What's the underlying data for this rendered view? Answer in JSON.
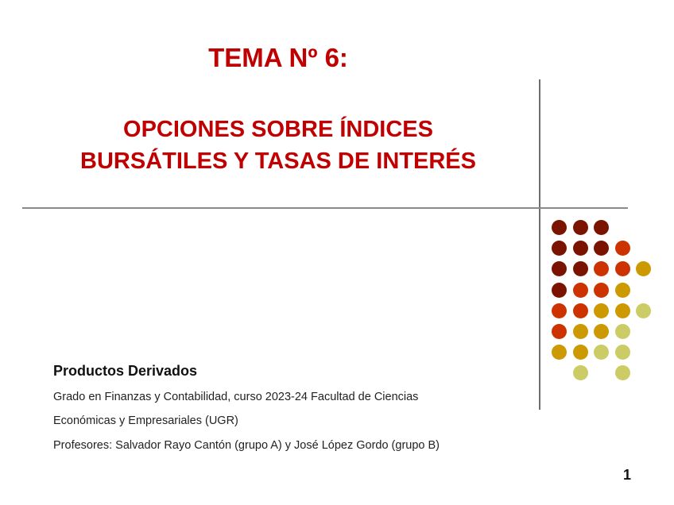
{
  "slide": {
    "title": "TEMA Nº 6:",
    "subtitle_line1": "OPCIONES SOBRE ÍNDICES",
    "subtitle_line2": "BURSÁTILES Y TASAS DE INTERÉS",
    "course": "Productos Derivados",
    "line1": "Grado en Finanzas y Contabilidad, curso 2023-24 Facultad de Ciencias",
    "line2": "Económicas y Empresariales (UGR)",
    "line3": "Profesores: Salvador Rayo Cantón (grupo A) y José López Gordo (grupo B)",
    "page_number": "1"
  },
  "colors": {
    "title": "#c00000",
    "dot_dark": "#7a1400",
    "dot_red": "#cc3300",
    "dot_gold": "#cc9900",
    "dot_light": "#cccc66"
  },
  "dot_pattern": [
    "DDD..",
    "DDDR.",
    "DDRRY",
    "DRRY.",
    "RRYYL",
    "RYYL.",
    "YYLL.",
    ".L.L."
  ]
}
